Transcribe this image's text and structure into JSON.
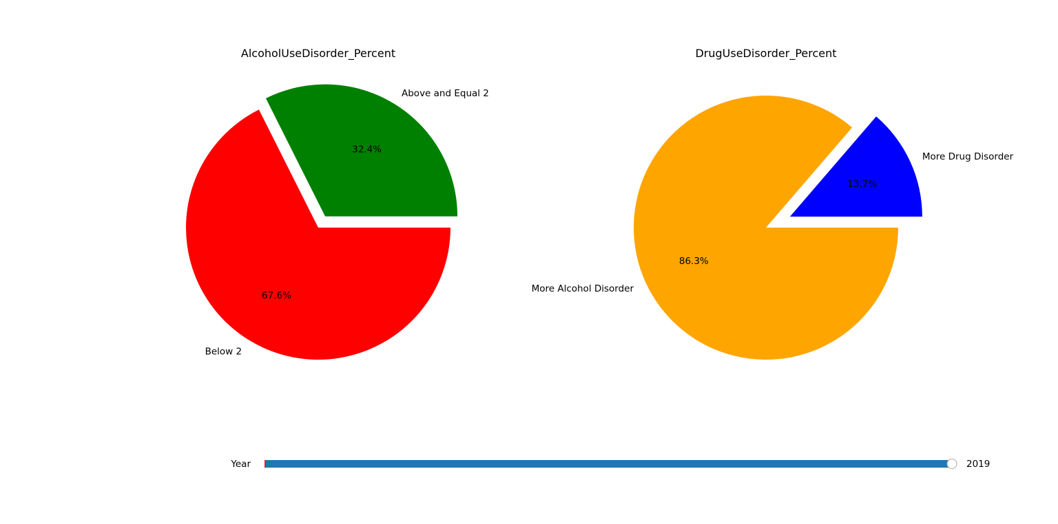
{
  "chart_data": [
    {
      "type": "pie",
      "title": "AlcoholUseDisorder_Percent",
      "categories": [
        "Above and Equal 2",
        "Below 2"
      ],
      "values": [
        32.4,
        67.6
      ],
      "value_labels": [
        "32.4%",
        "67.6%"
      ],
      "colors": [
        "#008000",
        "#ff0000"
      ],
      "explode": [
        0.1,
        0
      ],
      "start_angle_deg": 0,
      "legend": "none"
    },
    {
      "type": "pie",
      "title": "DrugUseDisorder_Percent",
      "categories": [
        "More Drug Disorder",
        "More Alcohol Disorder"
      ],
      "values": [
        13.7,
        86.3
      ],
      "value_labels": [
        "13.7%",
        "86.3%"
      ],
      "colors": [
        "#0000ff",
        "#ffa500"
      ],
      "explode": [
        0.2,
        0
      ],
      "start_angle_deg": 0,
      "legend": "none"
    }
  ],
  "slider": {
    "label": "Year",
    "value_text": "2019",
    "fraction": 1.0,
    "track_color": "#1f77b4",
    "marker_color": "#d62728"
  }
}
